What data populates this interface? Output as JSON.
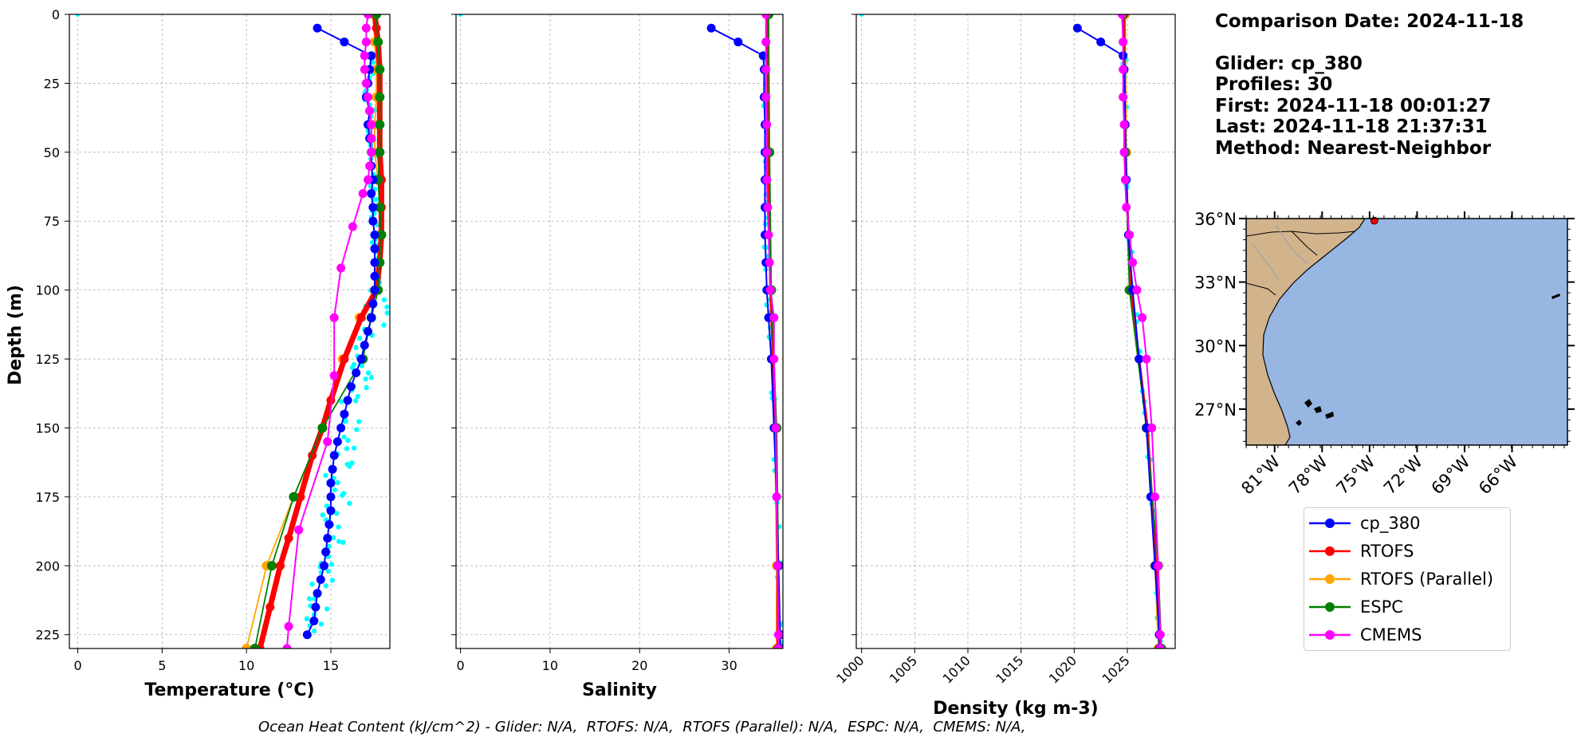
{
  "colors": {
    "cp_380": "#0000ff",
    "RTOFS": "#ff0000",
    "RTOFS (Parallel)": "#ffa500",
    "ESPC": "#008000",
    "CMEMS": "#ff00ff",
    "glider_raw": "#00ffff",
    "land": "#d2b48c",
    "ocean": "#98b6e2"
  },
  "info": {
    "comparison_date": "Comparison Date: 2024-11-18",
    "glider": "Glider: cp_380",
    "profiles": "Profiles: 30",
    "first": "First: 2024-11-18 00:01:27",
    "last": "Last: 2024-11-18 21:37:31",
    "method": "Method: Nearest-Neighbor"
  },
  "legend": [
    "cp_380",
    "RTOFS",
    "RTOFS (Parallel)",
    "ESPC",
    "CMEMS"
  ],
  "footer": "Ocean Heat Content (kJ/cm^2) - Glider: N/A,  RTOFS: N/A,  RTOFS (Parallel): N/A,  ESPC: N/A,  CMEMS: N/A,",
  "map": {
    "lat_ticks": [
      "36°N",
      "33°N",
      "30°N",
      "27°N"
    ],
    "lon_ticks": [
      "81°W",
      "78°W",
      "75°W",
      "72°W",
      "69°W",
      "66°W"
    ],
    "lat_range": [
      25.3,
      36
    ],
    "lon_range": [
      -82.8,
      -62.5
    ],
    "glider_position": {
      "lon": -74.7,
      "lat": 35.9
    }
  },
  "chart_data": [
    {
      "type": "line",
      "xlabel": "Temperature (°C)",
      "ylabel": "Depth (m)",
      "xlim": [
        -0.5,
        18.5
      ],
      "ylim": [
        230,
        0
      ],
      "xticks": [
        0,
        5,
        10,
        15
      ],
      "yticks": [
        0,
        25,
        50,
        75,
        100,
        125,
        150,
        175,
        200,
        225
      ],
      "grid": true,
      "series": [
        {
          "name": "cp_380",
          "depth": [
            5,
            10,
            15,
            20,
            25,
            30,
            35,
            40,
            45,
            50,
            55,
            60,
            65,
            70,
            75,
            80,
            85,
            90,
            95,
            100,
            105,
            110,
            115,
            120,
            125,
            130,
            135,
            140,
            145,
            150,
            155,
            160,
            165,
            170,
            175,
            180,
            185,
            190,
            195,
            200,
            205,
            210,
            215,
            220,
            225
          ],
          "values": [
            14.2,
            15.8,
            17.4,
            17.3,
            17.2,
            17.1,
            17.3,
            17.2,
            17.3,
            17.4,
            17.4,
            17.5,
            17.4,
            17.5,
            17.5,
            17.6,
            17.6,
            17.6,
            17.6,
            17.6,
            17.5,
            17.4,
            17.2,
            17,
            16.8,
            16.5,
            16.2,
            16,
            15.8,
            15.6,
            15.4,
            15.2,
            15.1,
            15,
            15,
            15,
            14.9,
            14.8,
            14.7,
            14.6,
            14.4,
            14.2,
            14.1,
            14,
            13.6
          ]
        },
        {
          "name": "RTOFS",
          "depth": [
            0,
            5,
            10,
            20,
            30,
            40,
            50,
            60,
            70,
            80,
            90,
            100,
            110,
            125,
            140,
            150,
            160,
            175,
            190,
            200,
            215,
            230
          ],
          "values": [
            17.6,
            17.7,
            17.8,
            17.9,
            17.9,
            17.9,
            17.9,
            18,
            18,
            18,
            17.9,
            17.7,
            16.8,
            15.8,
            15,
            14.5,
            13.9,
            13.2,
            12.5,
            12,
            11.4,
            10.8
          ]
        },
        {
          "name": "RTOFS (Parallel)",
          "depth": [
            0,
            10,
            20,
            30,
            40,
            50,
            60,
            70,
            80,
            90,
            100,
            110,
            125,
            150,
            175,
            200,
            230
          ],
          "values": [
            17.5,
            17.6,
            17.7,
            17.7,
            17.6,
            17.6,
            17.8,
            17.9,
            17.9,
            17.8,
            17.6,
            16.7,
            15.7,
            14.5,
            12.8,
            11.2,
            10
          ]
        },
        {
          "name": "ESPC",
          "depth": [
            0,
            10,
            20,
            30,
            40,
            50,
            60,
            70,
            80,
            90,
            100,
            110,
            125,
            150,
            175,
            200,
            230
          ],
          "values": [
            17.7,
            17.8,
            17.9,
            17.9,
            17.9,
            17.9,
            17.8,
            17.9,
            18,
            17.9,
            17.8,
            17.4,
            16.9,
            14.5,
            12.8,
            11.5,
            10.5
          ]
        },
        {
          "name": "CMEMS",
          "depth": [
            0,
            5,
            10,
            15,
            20,
            25,
            30,
            35,
            40,
            45,
            50,
            55,
            60,
            65,
            77,
            92,
            110,
            131,
            155,
            187,
            222,
            230
          ],
          "values": [
            17.2,
            17.1,
            17.1,
            17,
            17,
            17.1,
            17.2,
            17.3,
            17.4,
            17.4,
            17.4,
            17.3,
            17.2,
            16.9,
            16.3,
            15.6,
            15.2,
            15.2,
            14.8,
            13.1,
            12.5,
            12.4
          ]
        }
      ]
    },
    {
      "type": "line",
      "xlabel": "Salinity",
      "xlim": [
        -0.5,
        36
      ],
      "ylim": [
        230,
        0
      ],
      "xticks": [
        0,
        10,
        20,
        30
      ],
      "grid": true,
      "series": [
        {
          "name": "cp_380",
          "depth": [
            5,
            10,
            15,
            20,
            30,
            40,
            50,
            60,
            70,
            80,
            90,
            100,
            110,
            125,
            150,
            175,
            200,
            225,
            230
          ],
          "values": [
            28,
            31,
            33.8,
            33.9,
            33.9,
            34,
            34,
            34,
            34,
            34,
            34.1,
            34.2,
            34.4,
            34.7,
            35,
            35.3,
            35.5,
            35.7,
            35.7
          ]
        },
        {
          "name": "RTOFS",
          "depth": [
            0,
            50,
            100,
            150,
            200,
            230
          ],
          "values": [
            34.3,
            34.4,
            34.6,
            35.2,
            35.4,
            35.4
          ]
        },
        {
          "name": "RTOFS (Parallel)",
          "depth": [
            0,
            50,
            100,
            150,
            200,
            230
          ],
          "values": [
            34.2,
            34.3,
            34.6,
            35.1,
            35.3,
            35.3
          ]
        },
        {
          "name": "ESPC",
          "depth": [
            0,
            50,
            100,
            150,
            200,
            230
          ],
          "values": [
            34.4,
            34.5,
            34.7,
            35.3,
            35.5,
            35.5
          ]
        },
        {
          "name": "CMEMS",
          "depth": [
            0,
            10,
            20,
            30,
            40,
            50,
            60,
            70,
            80,
            90,
            100,
            110,
            125,
            150,
            175,
            200,
            225,
            230
          ],
          "values": [
            34.1,
            34.1,
            34.1,
            34.1,
            34.2,
            34.2,
            34.2,
            34.3,
            34.4,
            34.5,
            34.6,
            35,
            35,
            35.2,
            35.3,
            35.4,
            35.5,
            35.5
          ]
        }
      ]
    },
    {
      "type": "line",
      "xlabel": "Density (kg m-3)",
      "xlim": [
        999.5,
        1029.5
      ],
      "ylim": [
        230,
        0
      ],
      "xticks": [
        1000,
        1005,
        1010,
        1015,
        1020,
        1025
      ],
      "grid": true,
      "series": [
        {
          "name": "cp_380",
          "depth": [
            5,
            10,
            15,
            20,
            40,
            60,
            80,
            100,
            125,
            150,
            175,
            200,
            225,
            230
          ],
          "values": [
            1020.3,
            1022.5,
            1024.6,
            1024.7,
            1024.8,
            1024.9,
            1025.1,
            1025.5,
            1026.1,
            1026.8,
            1027.2,
            1027.6,
            1028,
            1028
          ]
        },
        {
          "name": "RTOFS",
          "depth": [
            0,
            50,
            100,
            150,
            200,
            230
          ],
          "values": [
            1024.7,
            1024.8,
            1025.3,
            1026.9,
            1027.7,
            1028.1
          ]
        },
        {
          "name": "RTOFS (Parallel)",
          "depth": [
            0,
            50,
            100,
            150,
            200,
            230
          ],
          "values": [
            1024.8,
            1024.9,
            1025.2,
            1026.8,
            1027.6,
            1027.9
          ]
        },
        {
          "name": "ESPC",
          "depth": [
            0,
            50,
            100,
            150,
            200,
            230
          ],
          "values": [
            1024.6,
            1024.8,
            1025.2,
            1026.8,
            1027.9,
            1028.2
          ]
        },
        {
          "name": "CMEMS",
          "depth": [
            0,
            10,
            20,
            30,
            40,
            50,
            60,
            70,
            80,
            90,
            100,
            110,
            125,
            150,
            175,
            200,
            225,
            230
          ],
          "values": [
            1024.5,
            1024.6,
            1024.6,
            1024.6,
            1024.7,
            1024.7,
            1024.8,
            1024.9,
            1025.2,
            1025.5,
            1025.9,
            1026.4,
            1026.8,
            1027.3,
            1027.6,
            1027.9,
            1028.1,
            1028.1
          ]
        }
      ]
    }
  ]
}
